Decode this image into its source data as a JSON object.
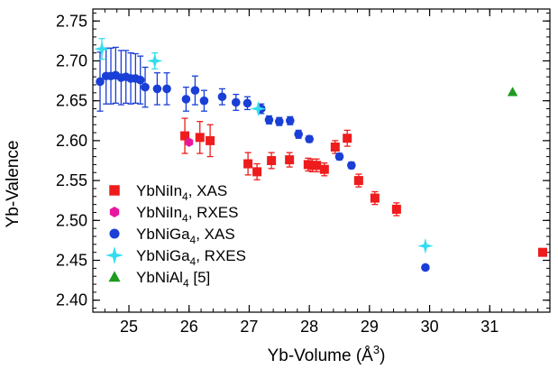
{
  "chart_data": {
    "type": "scatter",
    "title": "",
    "xlabel": "Yb-Volume (Å",
    "xlabel_sup": "3",
    "xlabel_close": ")",
    "ylabel": "Yb-Valence",
    "xlim": [
      24.4,
      32.0
    ],
    "ylim": [
      2.385,
      2.765
    ],
    "grid": false,
    "legend_position": "lower-left",
    "x_major_ticks": [
      25,
      26,
      27,
      28,
      29,
      30,
      31
    ],
    "x_tick_labels": [
      "25",
      "26",
      "27",
      "28",
      "29",
      "30",
      "31"
    ],
    "x_minor_step": 0.2,
    "y_major_ticks": [
      2.4,
      2.45,
      2.5,
      2.55,
      2.6,
      2.65,
      2.7,
      2.75
    ],
    "y_tick_labels": [
      "2.40",
      "2.45",
      "2.50",
      "2.55",
      "2.60",
      "2.65",
      "2.70",
      "2.75"
    ],
    "y_minor_step": 0.01,
    "series": [
      {
        "legend": {
          "compound": "YbNiIn",
          "sub": "4",
          "suffix": ", XAS"
        },
        "marker": "square",
        "color": "#ee1c1c",
        "error_color": "#ee1c1c",
        "points": [
          [
            25.93,
            2.606,
            0.022
          ],
          [
            26.18,
            2.604,
            0.02
          ],
          [
            26.35,
            2.6,
            0.02
          ],
          [
            26.98,
            2.571,
            0.014
          ],
          [
            27.13,
            2.561,
            0.01
          ],
          [
            27.37,
            2.575,
            0.01
          ],
          [
            27.67,
            2.576,
            0.009
          ],
          [
            27.98,
            2.57,
            0.008
          ],
          [
            28.05,
            2.569,
            0.008
          ],
          [
            28.12,
            2.569,
            0.008
          ],
          [
            28.25,
            2.564,
            0.008
          ],
          [
            28.43,
            2.592,
            0.008
          ],
          [
            28.63,
            2.603,
            0.01
          ],
          [
            28.82,
            2.55,
            0.008
          ],
          [
            29.09,
            2.528,
            0.008
          ],
          [
            29.45,
            2.514,
            0.008
          ],
          [
            31.88,
            2.46,
            0.0
          ]
        ]
      },
      {
        "legend": {
          "compound": "YbNiIn",
          "sub": "4",
          "suffix": ", RXES"
        },
        "marker": "hexagon",
        "color": "#e8189e",
        "error_color": "#e8189e",
        "points": [
          [
            26.0,
            2.598,
            0.0
          ]
        ]
      },
      {
        "legend": {
          "compound": "YbNiGa",
          "sub": "4",
          "suffix": ", XAS"
        },
        "marker": "circle",
        "color": "#1a3fd6",
        "error_color": "#1a3fd6",
        "points": [
          [
            24.52,
            2.674,
            0.037
          ],
          [
            24.62,
            2.681,
            0.035
          ],
          [
            24.7,
            2.681,
            0.035
          ],
          [
            24.78,
            2.682,
            0.035
          ],
          [
            24.87,
            2.679,
            0.034
          ],
          [
            24.95,
            2.68,
            0.033
          ],
          [
            25.03,
            2.678,
            0.032
          ],
          [
            25.11,
            2.678,
            0.031
          ],
          [
            25.19,
            2.676,
            0.03
          ],
          [
            25.27,
            2.667,
            0.025
          ],
          [
            25.47,
            2.665,
            0.02
          ],
          [
            25.63,
            2.665,
            0.02
          ],
          [
            25.95,
            2.652,
            0.015
          ],
          [
            26.1,
            2.663,
            0.018
          ],
          [
            26.25,
            2.65,
            0.013
          ],
          [
            26.55,
            2.655,
            0.01
          ],
          [
            26.78,
            2.648,
            0.01
          ],
          [
            26.97,
            2.647,
            0.008
          ],
          [
            27.2,
            2.64,
            0.006
          ],
          [
            27.33,
            2.626,
            0.005
          ],
          [
            27.5,
            2.624,
            0.005
          ],
          [
            27.68,
            2.625,
            0.005
          ],
          [
            27.82,
            2.608,
            0.005
          ],
          [
            28.0,
            2.602,
            0.004
          ],
          [
            28.5,
            2.58,
            0.004
          ],
          [
            28.7,
            2.569,
            0.004
          ],
          [
            29.93,
            2.441,
            0.002
          ]
        ]
      },
      {
        "legend": {
          "compound": "YbNiGa",
          "sub": "4",
          "suffix": ", RXES"
        },
        "marker": "star",
        "color": "#33ddee",
        "error_color": "#33ddee",
        "points": [
          [
            24.55,
            2.715,
            0.013
          ],
          [
            25.43,
            2.7,
            0.01
          ],
          [
            27.15,
            2.64,
            0.0
          ],
          [
            29.93,
            2.468,
            0.0
          ]
        ]
      },
      {
        "legend": {
          "compound": "YbNiAl",
          "sub": "4",
          "suffix": " [5]"
        },
        "marker": "triangle",
        "color": "#1e9a1e",
        "error_color": "#1e9a1e",
        "points": [
          [
            31.38,
            2.661,
            0.0
          ]
        ]
      }
    ]
  }
}
